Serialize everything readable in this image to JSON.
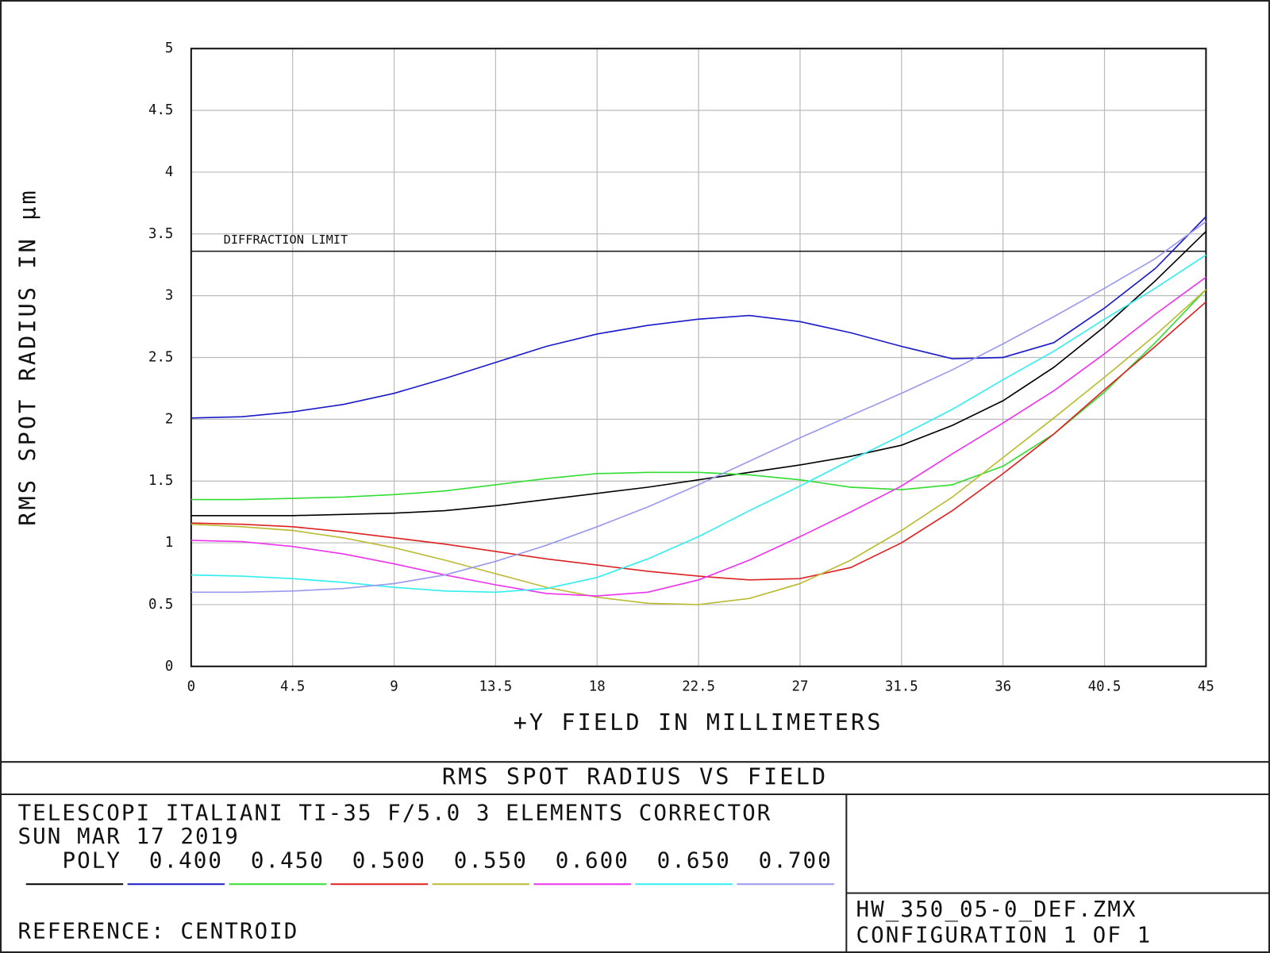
{
  "chart_data": {
    "type": "line",
    "title": "RMS SPOT RADIUS VS FIELD",
    "xlabel": "+Y FIELD IN MILLIMETERS",
    "ylabel": "RMS SPOT RADIUS IN µm",
    "xlim": [
      0,
      45
    ],
    "ylim": [
      0,
      5
    ],
    "xticks": [
      0,
      4.5,
      9,
      13.5,
      18,
      22.5,
      27,
      31.5,
      36,
      40.5,
      45
    ],
    "yticks": [
      0,
      0.5,
      1,
      1.5,
      2,
      2.5,
      3,
      3.5,
      4,
      4.5,
      5
    ],
    "grid": true,
    "reference_line": {
      "value": 3.36,
      "label": "DIFFRACTION LIMIT"
    },
    "x": [
      0,
      2.25,
      4.5,
      6.75,
      9,
      11.25,
      13.5,
      15.75,
      18,
      20.25,
      22.5,
      24.75,
      27,
      29.25,
      31.5,
      33.75,
      36,
      38.25,
      40.5,
      42.75,
      45
    ],
    "series": [
      {
        "name": "POLY",
        "color": "#000000",
        "values": [
          1.22,
          1.22,
          1.22,
          1.23,
          1.24,
          1.26,
          1.3,
          1.35,
          1.4,
          1.45,
          1.51,
          1.57,
          1.63,
          1.7,
          1.79,
          1.95,
          2.15,
          2.42,
          2.75,
          3.12,
          3.52
        ]
      },
      {
        "name": "0.400",
        "color": "#1a1ac8",
        "values": [
          2.01,
          2.02,
          2.06,
          2.12,
          2.21,
          2.33,
          2.46,
          2.59,
          2.69,
          2.76,
          2.81,
          2.84,
          2.79,
          2.7,
          2.59,
          2.49,
          2.5,
          2.62,
          2.9,
          3.22,
          3.64
        ]
      },
      {
        "name": "0.450",
        "color": "#33dd33",
        "values": [
          1.35,
          1.35,
          1.36,
          1.37,
          1.39,
          1.42,
          1.47,
          1.52,
          1.56,
          1.57,
          1.57,
          1.55,
          1.51,
          1.45,
          1.43,
          1.47,
          1.62,
          1.88,
          2.22,
          2.62,
          3.05
        ]
      },
      {
        "name": "0.500",
        "color": "#dd2222",
        "values": [
          1.16,
          1.15,
          1.13,
          1.09,
          1.04,
          0.99,
          0.93,
          0.87,
          0.82,
          0.77,
          0.73,
          0.7,
          0.71,
          0.8,
          1.0,
          1.26,
          1.56,
          1.88,
          2.24,
          2.59,
          2.95
        ]
      },
      {
        "name": "0.550",
        "color": "#bbbb33",
        "values": [
          1.15,
          1.13,
          1.1,
          1.04,
          0.96,
          0.86,
          0.75,
          0.64,
          0.56,
          0.51,
          0.5,
          0.55,
          0.67,
          0.86,
          1.1,
          1.37,
          1.69,
          2.01,
          2.34,
          2.68,
          3.05
        ]
      },
      {
        "name": "0.600",
        "color": "#ee33ee",
        "values": [
          1.02,
          1.01,
          0.97,
          0.91,
          0.83,
          0.74,
          0.66,
          0.59,
          0.57,
          0.6,
          0.7,
          0.86,
          1.05,
          1.25,
          1.46,
          1.72,
          1.97,
          2.23,
          2.53,
          2.85,
          3.15
        ]
      },
      {
        "name": "0.650",
        "color": "#33eeee",
        "values": [
          0.74,
          0.73,
          0.71,
          0.68,
          0.64,
          0.61,
          0.6,
          0.63,
          0.72,
          0.87,
          1.05,
          1.26,
          1.46,
          1.67,
          1.87,
          2.08,
          2.32,
          2.55,
          2.81,
          3.06,
          3.33
        ]
      },
      {
        "name": "0.700",
        "color": "#9999ee",
        "values": [
          0.6,
          0.6,
          0.61,
          0.63,
          0.67,
          0.74,
          0.85,
          0.98,
          1.13,
          1.29,
          1.47,
          1.66,
          1.85,
          2.03,
          2.21,
          2.4,
          2.61,
          2.83,
          3.06,
          3.3,
          3.6
        ]
      }
    ],
    "header_lines": [
      "TELESCOPI ITALIANI TI-35 F/5.0  3 ELEMENTS CORRECTOR",
      "SUN MAR 17 2019"
    ],
    "reference": "REFERENCE: CENTROID",
    "file": "HW_350_05-0_DEF.ZMX",
    "configuration": "CONFIGURATION 1 OF 1"
  }
}
